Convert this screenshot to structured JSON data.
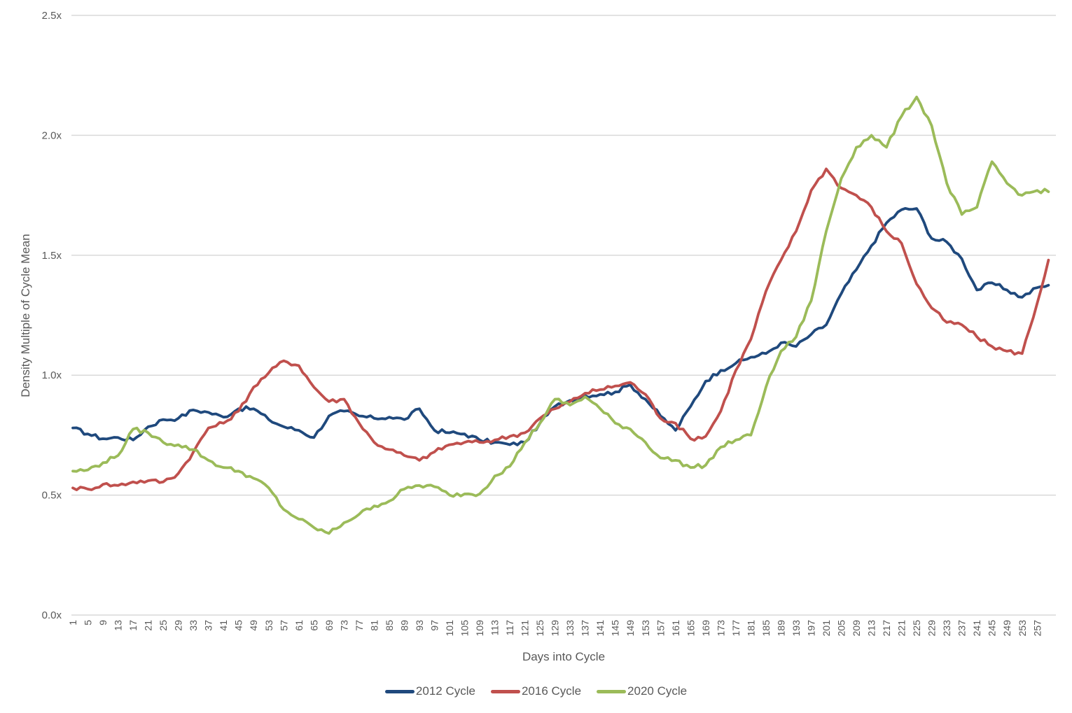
{
  "chart_data": {
    "type": "line",
    "title": "",
    "xlabel": "Days into Cycle",
    "ylabel": "Density Multiple of Cycle Mean",
    "ylim": [
      0,
      2.5
    ],
    "xlim": [
      1,
      260
    ],
    "grid": true,
    "legend_position": "bottom",
    "y_ticks": [
      "0.0x",
      "0.5x",
      "1.0x",
      "1.5x",
      "2.0x",
      "2.5x"
    ],
    "y_tick_values": [
      0,
      0.5,
      1.0,
      1.5,
      2.0,
      2.5
    ],
    "x_tick_labels": [
      "1",
      "5",
      "9",
      "13",
      "17",
      "21",
      "25",
      "29",
      "33",
      "37",
      "41",
      "45",
      "49",
      "53",
      "57",
      "61",
      "65",
      "69",
      "73",
      "77",
      "81",
      "85",
      "89",
      "93",
      "97",
      "101",
      "105",
      "109",
      "113",
      "117",
      "121",
      "125",
      "129",
      "133",
      "137",
      "141",
      "145",
      "149",
      "153",
      "157",
      "161",
      "165",
      "169",
      "173",
      "177",
      "181",
      "185",
      "189",
      "193",
      "197",
      "201",
      "205",
      "209",
      "213",
      "217",
      "221",
      "225",
      "229",
      "233",
      "237",
      "241",
      "245",
      "249",
      "253",
      "257"
    ],
    "x": [
      1,
      5,
      9,
      13,
      17,
      21,
      25,
      29,
      33,
      37,
      41,
      45,
      49,
      53,
      57,
      61,
      65,
      69,
      73,
      77,
      81,
      85,
      89,
      93,
      97,
      101,
      105,
      109,
      113,
      117,
      121,
      125,
      129,
      133,
      137,
      141,
      145,
      149,
      153,
      157,
      161,
      165,
      169,
      173,
      177,
      181,
      185,
      189,
      193,
      197,
      201,
      205,
      209,
      213,
      217,
      221,
      225,
      229,
      233,
      237,
      241,
      245,
      249,
      253,
      257,
      260
    ],
    "series": [
      {
        "name": "2012 Cycle",
        "color": "#1f497d",
        "values": [
          0.78,
          0.755,
          0.735,
          0.74,
          0.73,
          0.785,
          0.815,
          0.82,
          0.855,
          0.845,
          0.825,
          0.86,
          0.86,
          0.815,
          0.785,
          0.77,
          0.74,
          0.83,
          0.85,
          0.83,
          0.82,
          0.825,
          0.815,
          0.86,
          0.77,
          0.76,
          0.755,
          0.73,
          0.72,
          0.71,
          0.72,
          0.8,
          0.87,
          0.895,
          0.915,
          0.92,
          0.93,
          0.96,
          0.9,
          0.83,
          0.77,
          0.87,
          0.975,
          1.02,
          1.05,
          1.075,
          1.09,
          1.135,
          1.12,
          1.17,
          1.21,
          1.34,
          1.44,
          1.54,
          1.635,
          1.69,
          1.695,
          1.57,
          1.555,
          1.485,
          1.355,
          1.385,
          1.355,
          1.325,
          1.365,
          1.375
        ]
      },
      {
        "name": "2016 Cycle",
        "color": "#c0504d",
        "values": [
          0.53,
          0.525,
          0.545,
          0.54,
          0.555,
          0.56,
          0.555,
          0.59,
          0.68,
          0.78,
          0.8,
          0.85,
          0.95,
          1.01,
          1.06,
          1.04,
          0.95,
          0.89,
          0.9,
          0.8,
          0.72,
          0.69,
          0.665,
          0.645,
          0.68,
          0.71,
          0.72,
          0.72,
          0.73,
          0.745,
          0.76,
          0.82,
          0.86,
          0.89,
          0.925,
          0.94,
          0.955,
          0.97,
          0.92,
          0.82,
          0.8,
          0.735,
          0.745,
          0.85,
          1.02,
          1.15,
          1.35,
          1.48,
          1.6,
          1.77,
          1.86,
          1.78,
          1.75,
          1.7,
          1.6,
          1.55,
          1.38,
          1.28,
          1.22,
          1.21,
          1.16,
          1.12,
          1.1,
          1.09,
          1.3,
          1.48
        ]
      },
      {
        "name": "2020 Cycle",
        "color": "#9bbb59",
        "values": [
          0.6,
          0.605,
          0.635,
          0.665,
          0.775,
          0.76,
          0.72,
          0.71,
          0.69,
          0.645,
          0.615,
          0.6,
          0.57,
          0.53,
          0.44,
          0.4,
          0.365,
          0.34,
          0.385,
          0.42,
          0.455,
          0.475,
          0.525,
          0.54,
          0.535,
          0.5,
          0.505,
          0.505,
          0.58,
          0.62,
          0.72,
          0.8,
          0.9,
          0.875,
          0.91,
          0.86,
          0.8,
          0.775,
          0.72,
          0.655,
          0.645,
          0.615,
          0.625,
          0.7,
          0.73,
          0.75,
          0.95,
          1.1,
          1.16,
          1.31,
          1.6,
          1.82,
          1.95,
          2.0,
          1.95,
          2.08,
          2.16,
          2.04,
          1.8,
          1.67,
          1.7,
          1.89,
          1.8,
          1.75,
          1.77,
          1.765
        ]
      }
    ]
  },
  "legend": {
    "items": [
      {
        "label": "2012 Cycle",
        "color": "#1f497d"
      },
      {
        "label": "2016 Cycle",
        "color": "#c0504d"
      },
      {
        "label": "2020 Cycle",
        "color": "#9bbb59"
      }
    ]
  }
}
